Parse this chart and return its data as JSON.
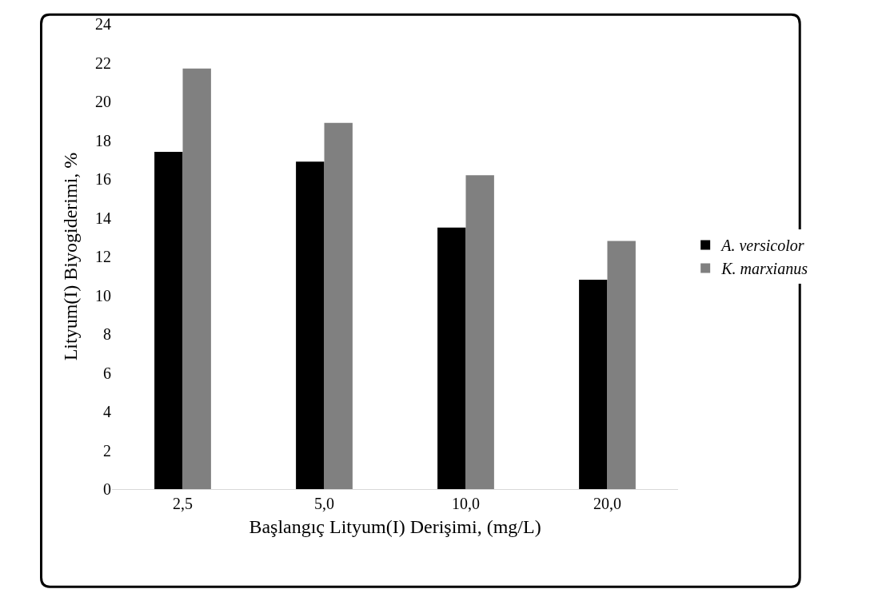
{
  "chart_data": {
    "type": "bar",
    "xlabel": "Başlangıç Lityum(I) Derişimi, (mg/L)",
    "ylabel": "Lityum(I) Biyogiderimi, %",
    "categories": [
      "2,5",
      "5,0",
      "10,0",
      "20,0"
    ],
    "series": [
      {
        "name": "A. versicolor",
        "color": "#000000",
        "values": [
          17.4,
          16.9,
          13.5,
          10.8
        ]
      },
      {
        "name": "K. marxianus",
        "color": "#808080",
        "values": [
          21.7,
          18.9,
          16.2,
          12.8
        ]
      }
    ],
    "ylim": [
      0,
      24
    ],
    "yticks": [
      0,
      2,
      4,
      6,
      8,
      10,
      12,
      14,
      16,
      18,
      20,
      22,
      24
    ],
    "grid": false,
    "legend": "right"
  }
}
